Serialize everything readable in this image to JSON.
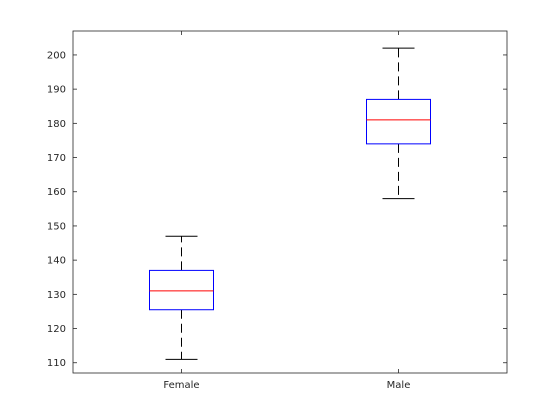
{
  "chart_data": {
    "type": "boxplot",
    "categories": [
      "Female",
      "Male"
    ],
    "boxes": [
      {
        "name": "Female",
        "whisker_low": 111,
        "q1": 125.5,
        "median": 131,
        "q3": 137,
        "whisker_high": 147
      },
      {
        "name": "Male",
        "whisker_low": 158,
        "q1": 174,
        "median": 181,
        "q3": 187,
        "whisker_high": 202
      }
    ],
    "yticks": [
      110,
      120,
      130,
      140,
      150,
      160,
      170,
      180,
      190,
      200
    ],
    "ylim": [
      107,
      207
    ],
    "grid": false,
    "colors": {
      "box": "#0000ff",
      "median": "#ff0000",
      "whisker": "#000000",
      "axes": "#262626"
    }
  }
}
